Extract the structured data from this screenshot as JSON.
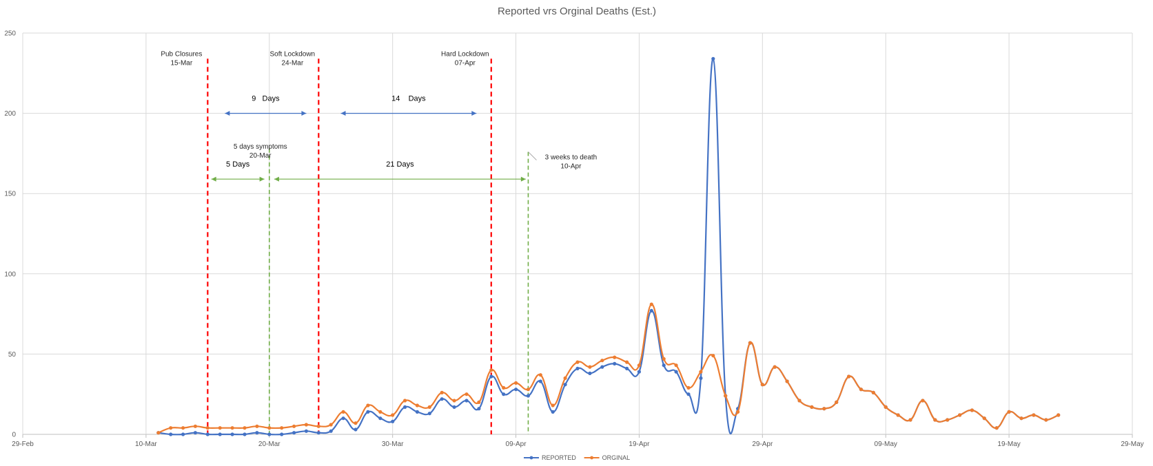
{
  "chart_data": {
    "type": "line",
    "title": "Reported vrs Orginal Deaths (Est.)",
    "xlabel": "",
    "ylabel": "",
    "ylim": [
      0,
      250
    ],
    "xlim": [
      "2020-02-29",
      "2020-05-29"
    ],
    "y_ticks": [
      0,
      50,
      100,
      150,
      200,
      250
    ],
    "x_ticks": [
      "2020-02-29",
      "2020-03-10",
      "2020-03-20",
      "2020-03-30",
      "2020-04-09",
      "2020-04-19",
      "2020-04-29",
      "2020-05-09",
      "2020-05-19",
      "2020-05-29"
    ],
    "x_tick_labels": [
      "29-Feb",
      "10-Mar",
      "20-Mar",
      "30-Mar",
      "09-Apr",
      "19-Apr",
      "29-Apr",
      "09-May",
      "19-May",
      "29-May"
    ],
    "grid": true,
    "legend_position": "bottom",
    "x": [
      "2020-03-11",
      "2020-03-12",
      "2020-03-13",
      "2020-03-14",
      "2020-03-15",
      "2020-03-16",
      "2020-03-17",
      "2020-03-18",
      "2020-03-19",
      "2020-03-20",
      "2020-03-21",
      "2020-03-22",
      "2020-03-23",
      "2020-03-24",
      "2020-03-25",
      "2020-03-26",
      "2020-03-27",
      "2020-03-28",
      "2020-03-29",
      "2020-03-30",
      "2020-03-31",
      "2020-04-01",
      "2020-04-02",
      "2020-04-03",
      "2020-04-04",
      "2020-04-05",
      "2020-04-06",
      "2020-04-07",
      "2020-04-08",
      "2020-04-09",
      "2020-04-10",
      "2020-04-11",
      "2020-04-12",
      "2020-04-13",
      "2020-04-14",
      "2020-04-15",
      "2020-04-16",
      "2020-04-17",
      "2020-04-18",
      "2020-04-19",
      "2020-04-20",
      "2020-04-21",
      "2020-04-22",
      "2020-04-23",
      "2020-04-24",
      "2020-04-25",
      "2020-04-26",
      "2020-04-27",
      "2020-04-28",
      "2020-04-29",
      "2020-04-30",
      "2020-05-01",
      "2020-05-02",
      "2020-05-03",
      "2020-05-04",
      "2020-05-05",
      "2020-05-06",
      "2020-05-07",
      "2020-05-08",
      "2020-05-09",
      "2020-05-10",
      "2020-05-11",
      "2020-05-12",
      "2020-05-13",
      "2020-05-14",
      "2020-05-15",
      "2020-05-16",
      "2020-05-17",
      "2020-05-18",
      "2020-05-19",
      "2020-05-20",
      "2020-05-21",
      "2020-05-22",
      "2020-05-23",
      "2020-05-24"
    ],
    "series": [
      {
        "name": "REPORTED",
        "color": "#4472C4",
        "values": [
          1,
          0,
          0,
          1,
          0,
          0,
          0,
          0,
          1,
          0,
          0,
          1,
          2,
          1,
          2,
          10,
          3,
          14,
          10,
          8,
          17,
          14,
          13,
          22,
          17,
          21,
          16,
          36,
          25,
          28,
          24,
          33,
          14,
          31,
          41,
          38,
          42,
          44,
          41,
          39,
          77,
          43,
          39,
          25,
          35,
          234,
          24,
          16,
          57,
          31,
          42,
          33,
          21,
          17,
          16,
          20,
          36,
          28,
          26,
          17,
          12,
          9,
          21,
          9,
          9,
          12,
          15,
          10,
          4,
          14,
          10,
          12,
          9,
          12,
          null
        ]
      },
      {
        "name": "ORGINAL",
        "color": "#ED7D31",
        "values": [
          1,
          4,
          4,
          5,
          4,
          4,
          4,
          4,
          5,
          4,
          4,
          5,
          6,
          5,
          6,
          14,
          7,
          18,
          14,
          12,
          21,
          18,
          17,
          26,
          21,
          25,
          20,
          40,
          29,
          32,
          28,
          37,
          18,
          35,
          45,
          42,
          46,
          48,
          45,
          43,
          81,
          47,
          43,
          29,
          39,
          49,
          24,
          14,
          57,
          31,
          42,
          33,
          21,
          17,
          16,
          20,
          36,
          28,
          26,
          17,
          12,
          9,
          21,
          9,
          9,
          12,
          15,
          10,
          4,
          14,
          10,
          12,
          9,
          12,
          null
        ]
      }
    ],
    "events": [
      {
        "label": "Pub Closures",
        "date_label": "15-Mar",
        "date": "2020-03-15",
        "color": "#FF0000",
        "top": 234
      },
      {
        "label": "Soft Lockdown",
        "date_label": "24-Mar",
        "date": "2020-03-24",
        "color": "#FF0000",
        "top": 234
      },
      {
        "label": "Hard Lockdown",
        "date_label": "07-Apr",
        "date": "2020-04-07",
        "color": "#FF0000",
        "top": 234
      },
      {
        "label": "5 days symptoms",
        "date_label": "20-Mar",
        "date": "2020-03-20",
        "color": "#70AD47",
        "top": 178
      },
      {
        "label": "3 weeks to death",
        "date_label": "10-Apr",
        "date": "2020-04-10",
        "color": "#70AD47",
        "top": 176
      }
    ],
    "spans": [
      {
        "label": "9   Days",
        "from": "2020-03-16.4",
        "to": "2020-03-23",
        "y": 200,
        "color": "#4472C4"
      },
      {
        "label": "14    Days",
        "from": "2020-03-25.8",
        "to": "2020-04-05.8",
        "y": 200,
        "color": "#4472C4"
      },
      {
        "label": "5 Days",
        "from": "2020-03-15.3",
        "to": "2020-03-19.6",
        "y": 159,
        "color": "#70AD47"
      },
      {
        "label": "21 Days",
        "from": "2020-03-20.4",
        "to": "2020-04-09.8",
        "y": 159,
        "color": "#70AD47"
      }
    ]
  }
}
